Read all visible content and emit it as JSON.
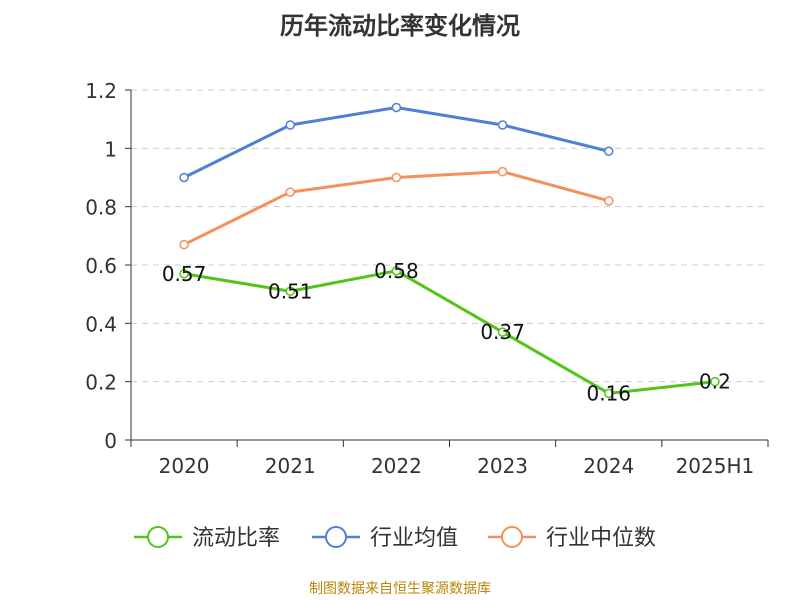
{
  "chart_data": {
    "type": "line",
    "title": "历年流动比率变化情况",
    "categories": [
      "2020",
      "2021",
      "2022",
      "2023",
      "2024",
      "2025H1"
    ],
    "ylim": [
      0,
      1.2
    ],
    "yticks": [
      "0",
      "0.2",
      "0.4",
      "0.6",
      "0.8",
      "1",
      "1.2"
    ],
    "grid": true,
    "legend_position": "bottom",
    "series": [
      {
        "name": "流动比率",
        "color": "#52c41a",
        "values": [
          0.57,
          0.51,
          0.58,
          0.37,
          0.16,
          0.2
        ],
        "labels": [
          "0.57",
          "0.51",
          "0.58",
          "0.37",
          "0.16",
          "0.2"
        ]
      },
      {
        "name": "行业均值",
        "color": "#4f7fd6",
        "values": [
          0.9,
          1.08,
          1.14,
          1.08,
          0.99,
          null
        ]
      },
      {
        "name": "行业中位数",
        "color": "#f5905a",
        "values": [
          0.67,
          0.85,
          0.9,
          0.92,
          0.82,
          null
        ]
      }
    ]
  },
  "footer": {
    "source": "制图数据来自恒生聚源数据库"
  }
}
